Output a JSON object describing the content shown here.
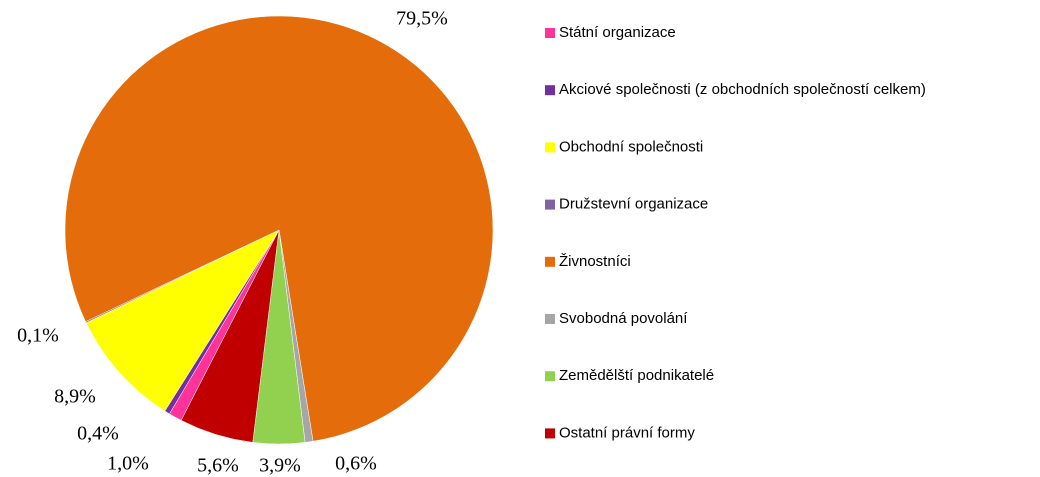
{
  "chart_data": {
    "type": "pie",
    "categories": [
      "Státní organizace",
      "Akciové společnosti (z obchodních společností celkem)",
      "Obchodní společnosti",
      "Družstevní organizace",
      "Živnostníci",
      "Svobodná povolání",
      "Zemědělští podnikatelé",
      "Ostatní právní formy"
    ],
    "values": [
      1.0,
      0.4,
      8.9,
      0.1,
      79.5,
      0.6,
      3.9,
      5.6
    ],
    "value_labels": [
      "1,0%",
      "0,4%",
      "8,9%",
      "0,1%",
      "79,5%",
      "0,6%",
      "3,9%",
      "5,6%"
    ],
    "colors": [
      "#ff3399",
      "#7030a0",
      "#ffff00",
      "#8064a2",
      "#e46c0a",
      "#a6a6a6",
      "#92d050",
      "#c00000"
    ],
    "legend": "right"
  }
}
